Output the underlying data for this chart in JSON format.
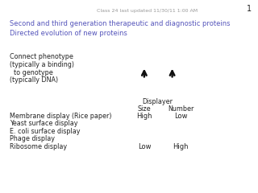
{
  "header_text": "Class 24 last updated 11/30/11 1:00 AM",
  "page_number": "1",
  "title_line1": "Second and third generation therapeutic and diagnostic proteins",
  "title_line2": "Directed evolution of new proteins",
  "title_color": "#5555bb",
  "left_text_lines": [
    "Connect phenotype",
    "(typically a binding)",
    "  to genotype",
    "(typically DNA)"
  ],
  "displayer_label": "Displayer",
  "col1_header": "Size",
  "col2_header": "Number",
  "col1_top": "High",
  "col2_top": "Low",
  "col1_bottom": "Low",
  "col2_bottom": "High",
  "row_labels": [
    "Membrane display (Rice paper)",
    "Yeast surface display",
    "E. coli surface display",
    "Phage display",
    "Ribosome display"
  ],
  "background_color": "#ffffff",
  "text_color": "#222222",
  "header_color": "#999999",
  "arrow_color": "#111111"
}
